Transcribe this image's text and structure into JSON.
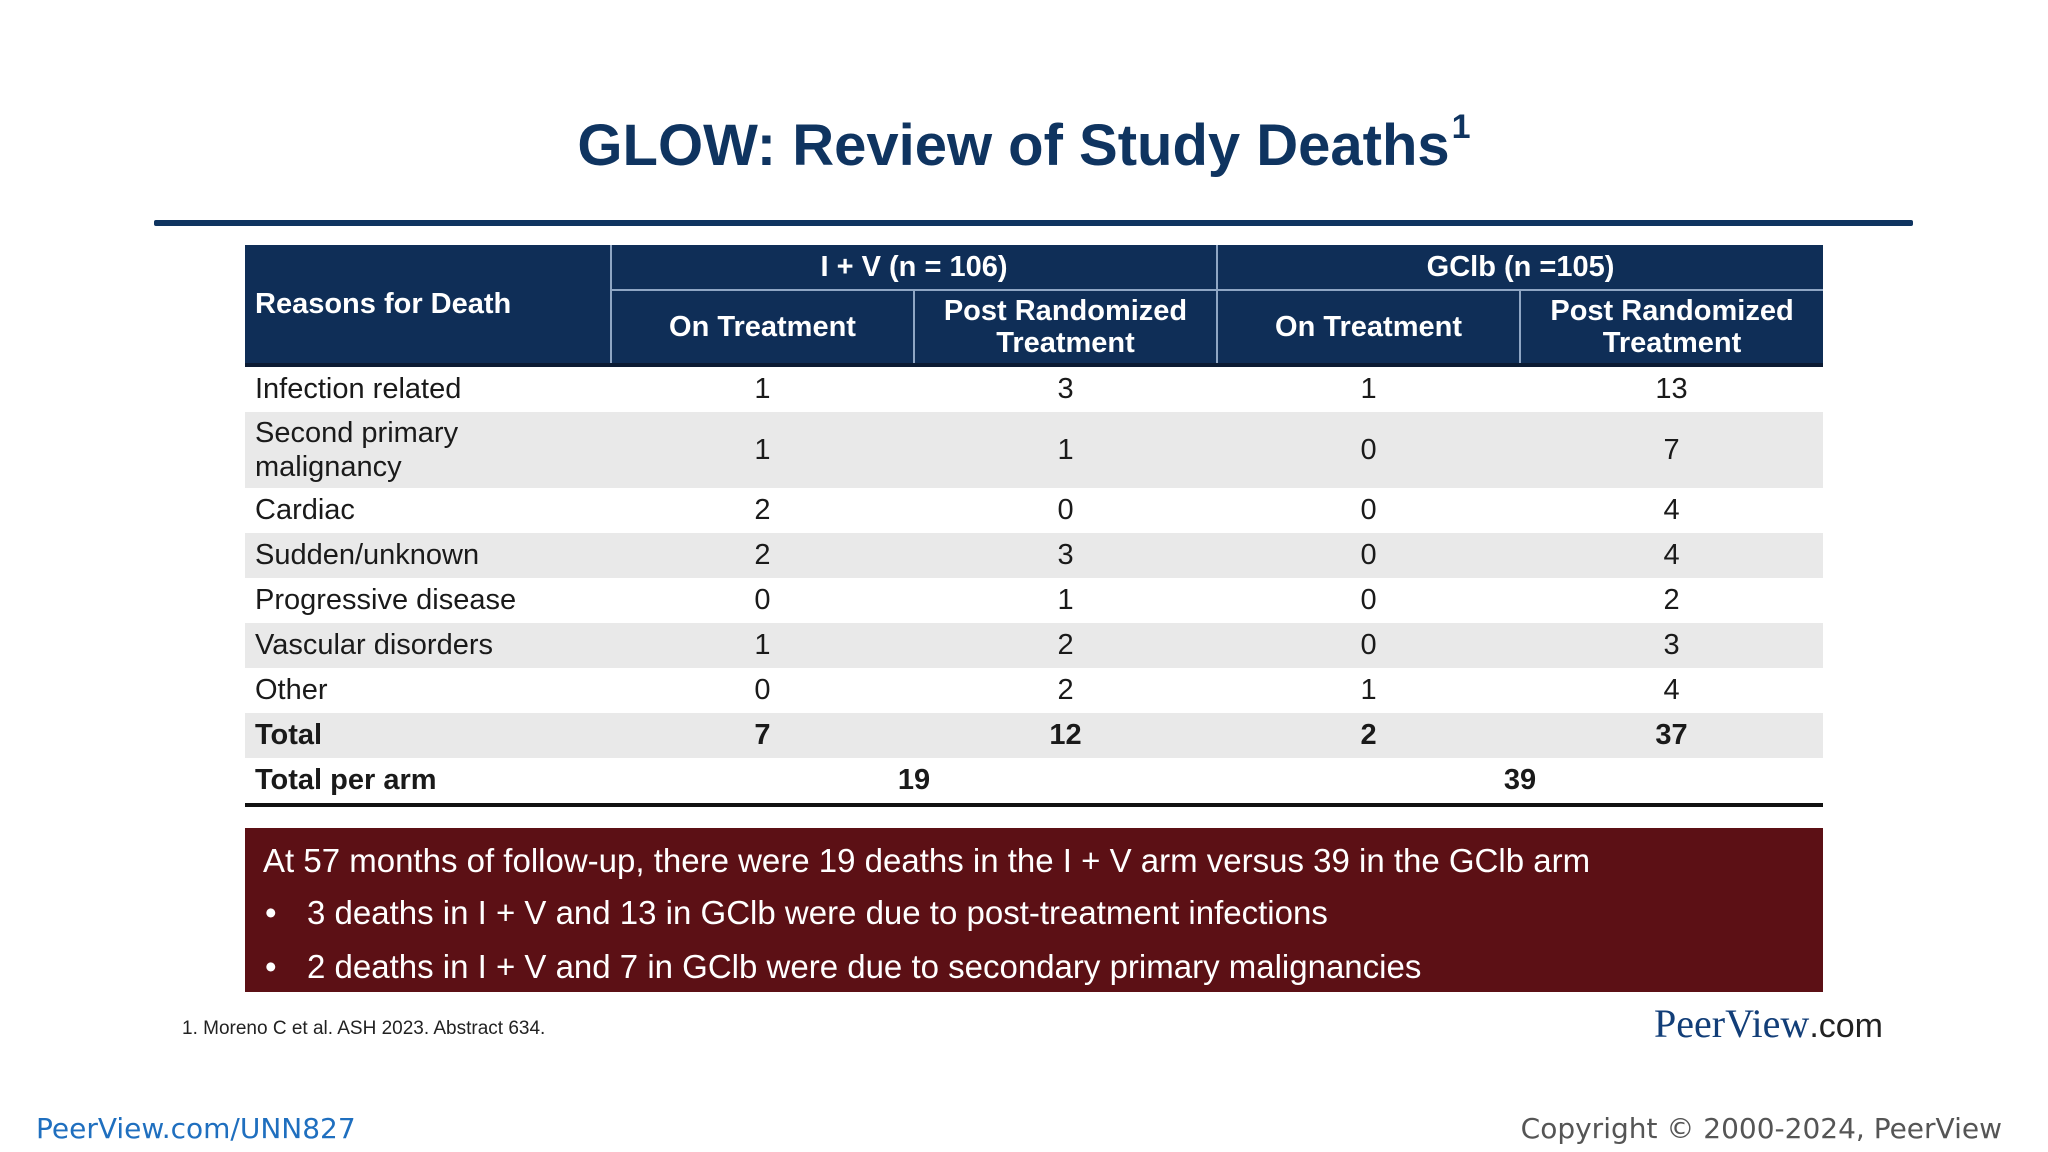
{
  "slide": {
    "title": "GLOW: Review of Study Deaths",
    "title_superscript": "1"
  },
  "table": {
    "row_header": "Reasons for Death",
    "groups": [
      "I + V (n = 106)",
      "GClb (n =105)"
    ],
    "subheaders": [
      "On Treatment",
      "Post Randomized Treatment",
      "On Treatment",
      "Post Randomized Treatment"
    ],
    "rows": [
      {
        "reason": "Infection related",
        "values": [
          "1",
          "3",
          "1",
          "13"
        ]
      },
      {
        "reason": "Second primary malignancy",
        "values": [
          "1",
          "1",
          "0",
          "7"
        ]
      },
      {
        "reason": "Cardiac",
        "values": [
          "2",
          "0",
          "0",
          "4"
        ]
      },
      {
        "reason": "Sudden/unknown",
        "values": [
          "2",
          "3",
          "0",
          "4"
        ]
      },
      {
        "reason": "Progressive disease",
        "values": [
          "0",
          "1",
          "0",
          "2"
        ]
      },
      {
        "reason": "Vascular disorders",
        "values": [
          "1",
          "2",
          "0",
          "3"
        ]
      },
      {
        "reason": "Other",
        "values": [
          "0",
          "2",
          "1",
          "4"
        ]
      }
    ],
    "total": {
      "label": "Total",
      "values": [
        "7",
        "12",
        "2",
        "37"
      ]
    },
    "per_arm": {
      "label": "Total per arm",
      "values": [
        "19",
        "39"
      ]
    }
  },
  "summary": {
    "lead": "At 57 months of follow-up, there were 19 deaths in the I + V arm versus 39 in the GClb arm",
    "bullet_glyph": "•",
    "bullets": [
      "3 deaths in I + V and 13 in GClb were due to post-treatment infections",
      "2 deaths in I + V and 7 in GClb were due to secondary primary malignancies"
    ]
  },
  "footnote": "1. Moreno C et al. ASH 2023. Abstract 634.",
  "logo": {
    "name": "PeerView",
    "suffix": ".com"
  },
  "footer": {
    "url": "PeerView.com/UNN827",
    "copyright": "Copyright © 2000-2024, PeerView"
  },
  "colors": {
    "title": "#0f3460",
    "header_bg": "#0f2e57",
    "summary_bg": "#5c1015",
    "row_shade": "#e9e9e9",
    "url": "#1f6fbf"
  }
}
